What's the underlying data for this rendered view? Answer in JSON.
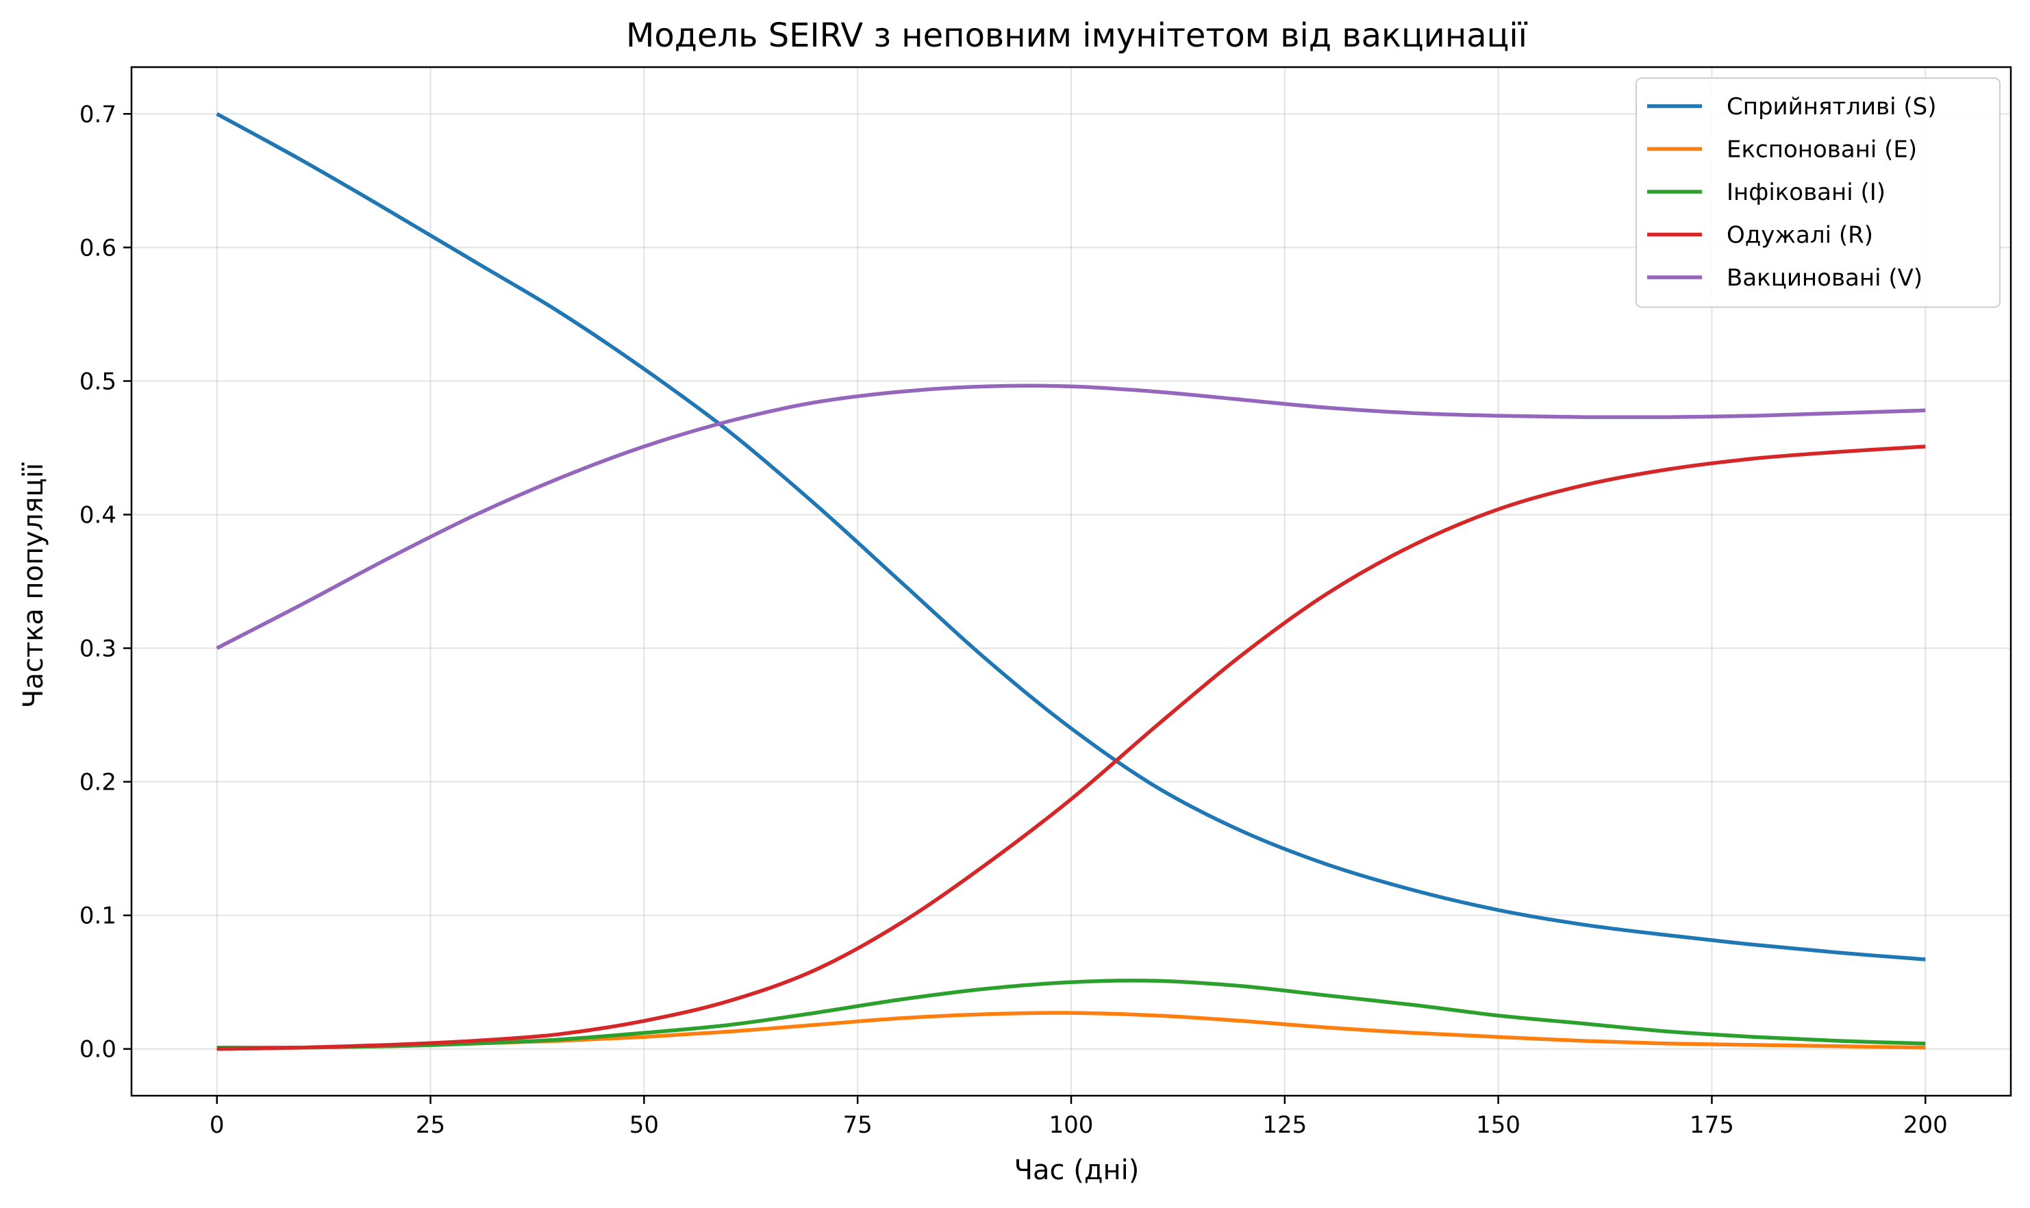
{
  "chart_data": {
    "type": "line",
    "title": "Модель SEIRV з неповним імунітетом від вакцинації",
    "xlabel": "Час (дні)",
    "ylabel": "Частка популяції",
    "xlim": [
      -10,
      210
    ],
    "ylim": [
      -0.035,
      0.735
    ],
    "xticks": [
      0,
      25,
      50,
      75,
      100,
      125,
      150,
      175,
      200
    ],
    "xtick_labels": [
      "0",
      "25",
      "50",
      "75",
      "100",
      "125",
      "150",
      "175",
      "200"
    ],
    "yticks": [
      0.0,
      0.1,
      0.2,
      0.3,
      0.4,
      0.5,
      0.6,
      0.7
    ],
    "ytick_labels": [
      "0.0",
      "0.1",
      "0.2",
      "0.3",
      "0.4",
      "0.5",
      "0.6",
      "0.7"
    ],
    "grid": true,
    "legend_position": "top-right",
    "x": [
      0,
      10,
      20,
      30,
      40,
      50,
      60,
      70,
      80,
      90,
      100,
      110,
      120,
      130,
      140,
      150,
      160,
      170,
      180,
      190,
      200
    ],
    "series": [
      {
        "name": "Сприйнятливі (S)",
        "color": "#1f77b4",
        "values": [
          0.7,
          0.665,
          0.628,
          0.59,
          0.552,
          0.509,
          0.462,
          0.408,
          0.35,
          0.292,
          0.24,
          0.196,
          0.163,
          0.138,
          0.119,
          0.104,
          0.093,
          0.085,
          0.078,
          0.072,
          0.067
        ]
      },
      {
        "name": "Експоновані (E)",
        "color": "#ff7f0e",
        "values": [
          0.0,
          0.001,
          0.002,
          0.004,
          0.006,
          0.009,
          0.013,
          0.018,
          0.023,
          0.026,
          0.027,
          0.025,
          0.021,
          0.016,
          0.012,
          0.009,
          0.006,
          0.004,
          0.003,
          0.002,
          0.001
        ]
      },
      {
        "name": "Інфіковані (I)",
        "color": "#2ca02c",
        "values": [
          0.001,
          0.001,
          0.002,
          0.004,
          0.007,
          0.012,
          0.018,
          0.027,
          0.037,
          0.045,
          0.05,
          0.051,
          0.047,
          0.04,
          0.033,
          0.025,
          0.019,
          0.013,
          0.009,
          0.006,
          0.004
        ]
      },
      {
        "name": "Одужалі (R)",
        "color": "#d62728",
        "values": [
          0.0,
          0.001,
          0.003,
          0.006,
          0.011,
          0.021,
          0.036,
          0.059,
          0.094,
          0.138,
          0.187,
          0.242,
          0.295,
          0.341,
          0.377,
          0.404,
          0.422,
          0.434,
          0.442,
          0.447,
          0.451
        ]
      },
      {
        "name": "Вакциновані (V)",
        "color": "#9467bd",
        "values": [
          0.3,
          0.333,
          0.367,
          0.399,
          0.427,
          0.451,
          0.47,
          0.484,
          0.492,
          0.496,
          0.496,
          0.492,
          0.486,
          0.48,
          0.476,
          0.474,
          0.473,
          0.473,
          0.474,
          0.476,
          0.478
        ]
      }
    ]
  }
}
